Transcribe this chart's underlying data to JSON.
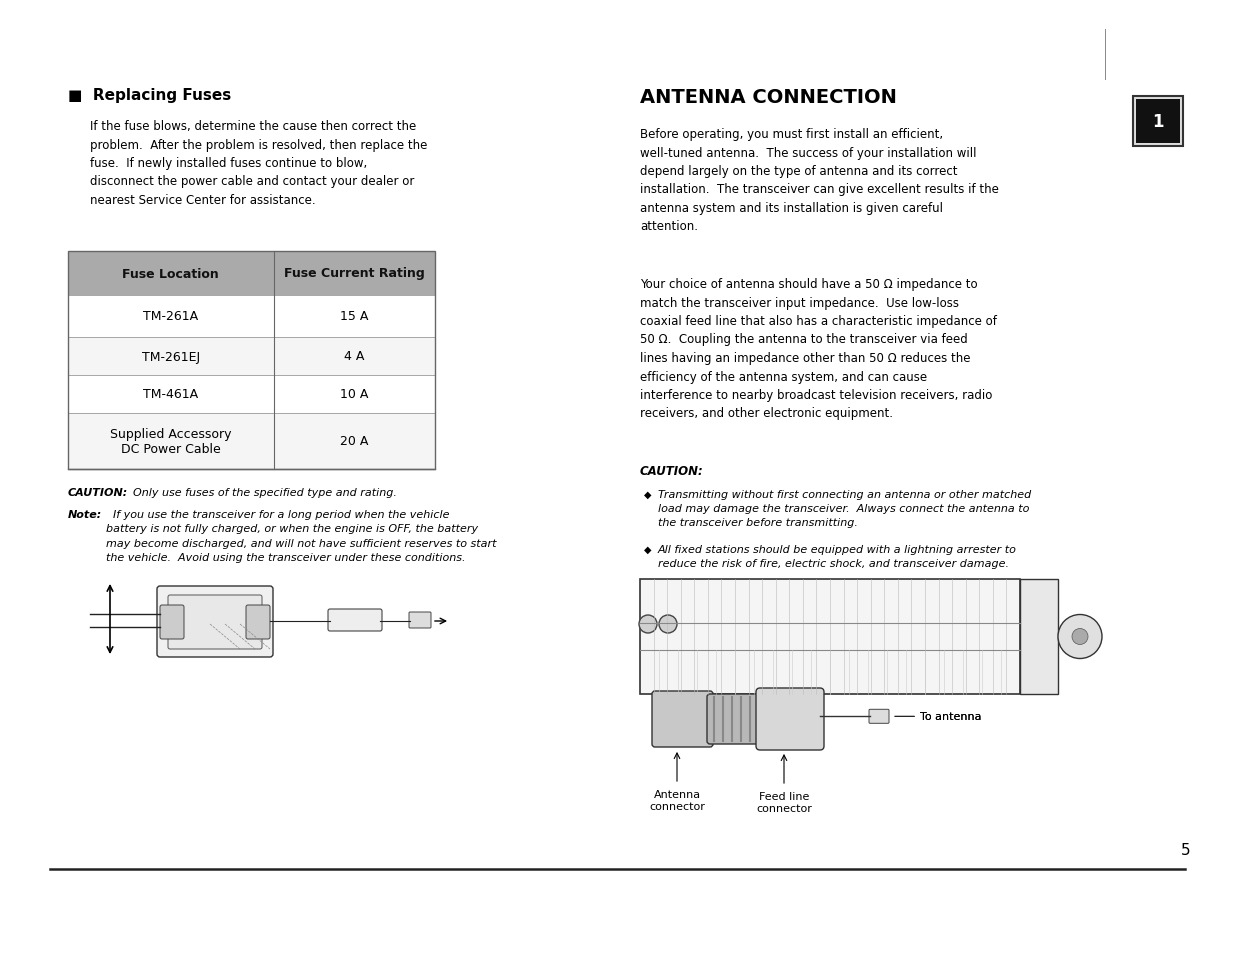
{
  "bg_color": "#ffffff",
  "left_section": {
    "title": "■  Replacing Fuses",
    "body_text": "If the fuse blows, determine the cause then correct the\nproblem.  After the problem is resolved, then replace the\nfuse.  If newly installed fuses continue to blow,\ndisconnect the power cable and contact your dealer or\nnearest Service Center for assistance.",
    "table_header": [
      "Fuse Location",
      "Fuse Current Rating"
    ],
    "table_rows": [
      [
        "TM-261A",
        "15 A"
      ],
      [
        "TM-261EJ",
        "4 A"
      ],
      [
        "TM-461A",
        "10 A"
      ],
      [
        "Supplied Accessory\nDC Power Cable",
        "20 A"
      ]
    ],
    "caution_text": "  Only use fuses of the specified type and rating.",
    "note_body": "  If you use the transceiver for a long period when the vehicle\nbattery is not fully charged, or when the engine is OFF, the battery\nmay become discharged, and will not have sufficient reserves to start\nthe vehicle.  Avoid using the transceiver under these conditions."
  },
  "right_section": {
    "title": "ANTENNA CONNECTION",
    "para1": "Before operating, you must first install an efficient,\nwell-tuned antenna.  The success of your installation will\ndepend largely on the type of antenna and its correct\ninstallation.  The transceiver can give excellent results if the\nantenna system and its installation is given careful\nattention.",
    "para2": "Your choice of antenna should have a 50 Ω impedance to\nmatch the transceiver input impedance.  Use low-loss\ncoaxial feed line that also has a characteristic impedance of\n50 Ω.  Coupling the antenna to the transceiver via feed\nlines having an impedance other than 50 Ω reduces the\nefficiency of the antenna system, and can cause\ninterference to nearby broadcast television receivers, radio\nreceivers, and other electronic equipment.",
    "caution_header": "CAUTION:",
    "bullet1": "Transmitting without first connecting an antenna or other matched\nload may damage the transceiver.  Always connect the antenna to\nthe transceiver before transmitting.",
    "bullet2": "All fixed stations should be equipped with a lightning arrester to\nreduce the risk of fire, electric shock, and transceiver damage.",
    "badge_num": "1"
  },
  "page_num": "5"
}
